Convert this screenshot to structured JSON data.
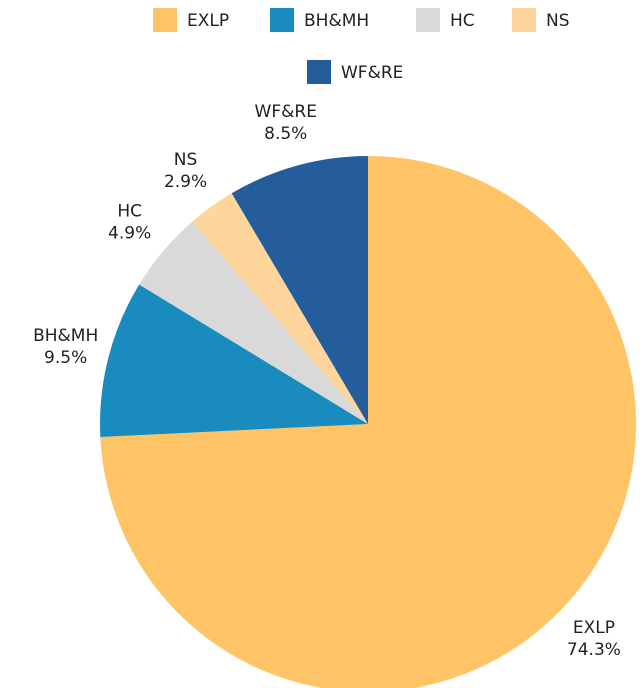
{
  "chart_data": {
    "type": "pie",
    "categories": [
      "EXLP",
      "BH&MH",
      "HC",
      "NS",
      "WF&RE"
    ],
    "values": [
      74.3,
      9.5,
      4.9,
      2.9,
      8.5
    ],
    "value_labels": [
      "74.3%",
      "9.5%",
      "4.9%",
      "2.9%",
      "8.5%"
    ],
    "colors": [
      "#fec466",
      "#1a8bbf",
      "#d9d9d9",
      "#fed59a",
      "#255c9c"
    ],
    "legend": "top"
  }
}
